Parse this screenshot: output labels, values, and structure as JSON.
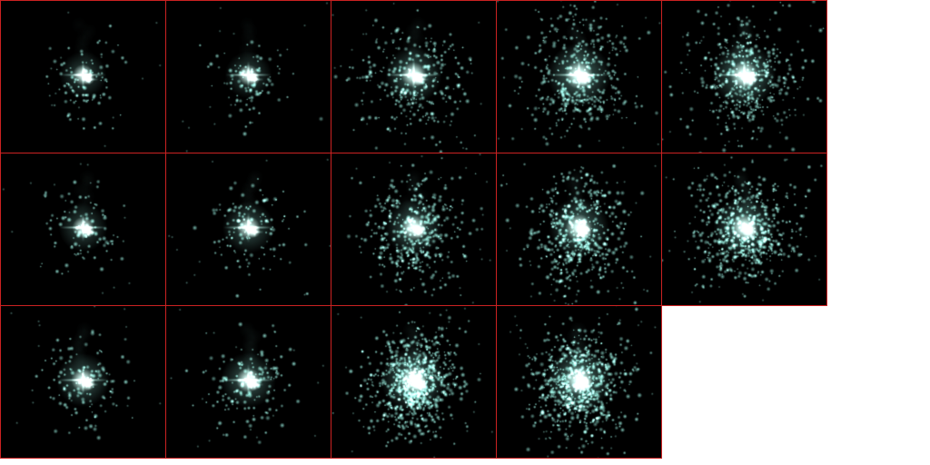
{
  "sprite_sheet": {
    "frame_border_color": "#cc2222",
    "frame_background": "#000000",
    "particle_color": "#9ff5e6",
    "core_color": "#f2fffb",
    "rows": [
      {
        "name": "row-1",
        "frames": [
          {
            "density": 0.1,
            "glow": 0.45,
            "spread": 0.45,
            "star_flare": true
          },
          {
            "density": 0.1,
            "glow": 0.45,
            "spread": 0.45,
            "star_flare": true
          },
          {
            "density": 0.4,
            "glow": 0.75,
            "spread": 0.85,
            "star_flare": true
          },
          {
            "density": 0.55,
            "glow": 0.95,
            "spread": 0.95,
            "star_flare": true
          },
          {
            "density": 0.6,
            "glow": 0.95,
            "spread": 0.9,
            "star_flare": true
          }
        ]
      },
      {
        "name": "row-2",
        "frames": [
          {
            "density": 0.1,
            "glow": 0.5,
            "spread": 0.45,
            "star_flare": true
          },
          {
            "density": 0.15,
            "glow": 0.6,
            "spread": 0.55,
            "star_flare": true
          },
          {
            "density": 0.55,
            "glow": 0.75,
            "spread": 0.8,
            "star_flare": false
          },
          {
            "density": 0.7,
            "glow": 0.85,
            "spread": 0.8,
            "star_flare": false
          },
          {
            "density": 0.8,
            "glow": 0.9,
            "spread": 0.8,
            "star_flare": false
          }
        ]
      },
      {
        "name": "row-3",
        "frames": [
          {
            "density": 0.15,
            "glow": 0.65,
            "spread": 0.55,
            "star_flare": true
          },
          {
            "density": 0.18,
            "glow": 0.7,
            "spread": 0.55,
            "star_flare": true
          },
          {
            "density": 1.0,
            "glow": 1.0,
            "spread": 0.7,
            "star_flare": false
          },
          {
            "density": 1.0,
            "glow": 1.0,
            "spread": 0.7,
            "star_flare": false
          }
        ]
      }
    ]
  }
}
